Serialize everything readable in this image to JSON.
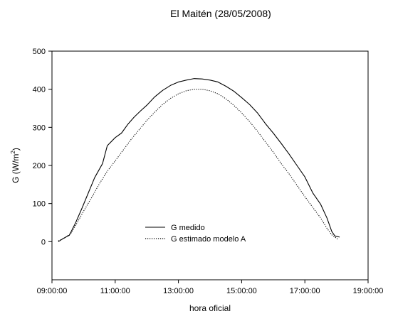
{
  "chart_data": {
    "type": "line",
    "title": "El Maitén (28/05/2008)",
    "xlabel": "hora oficial",
    "ylabel": {
      "prefix": "G (W/m",
      "superscript": "2",
      "suffix": ")"
    },
    "xlim": [
      9.0,
      19.0
    ],
    "ylim": [
      -100,
      500
    ],
    "x_ticks": [
      {
        "value": 9,
        "label": "09:00:00"
      },
      {
        "value": 11,
        "label": "11:00:00"
      },
      {
        "value": 13,
        "label": "13:00:00"
      },
      {
        "value": 15,
        "label": "15:00:00"
      },
      {
        "value": 17,
        "label": "17:00:00"
      },
      {
        "value": 19,
        "label": "19:00:00"
      }
    ],
    "y_ticks": [
      {
        "value": 0,
        "label": "0"
      },
      {
        "value": 100,
        "label": "100"
      },
      {
        "value": 200,
        "label": "200"
      },
      {
        "value": 300,
        "label": "300"
      },
      {
        "value": 400,
        "label": "400"
      },
      {
        "value": 500,
        "label": "500"
      }
    ],
    "grid": false,
    "legend": "center-bottom",
    "series": [
      {
        "name": "G medido",
        "style": "solid",
        "color": "#000000",
        "points": [
          [
            9.2,
            0
          ],
          [
            9.35,
            8
          ],
          [
            9.55,
            17
          ],
          [
            9.75,
            50
          ],
          [
            9.95,
            88
          ],
          [
            10.15,
            128
          ],
          [
            10.35,
            168
          ],
          [
            10.6,
            205
          ],
          [
            10.75,
            252
          ],
          [
            11.0,
            273
          ],
          [
            11.2,
            285
          ],
          [
            11.4,
            308
          ],
          [
            11.6,
            327
          ],
          [
            11.8,
            343
          ],
          [
            12.0,
            358
          ],
          [
            12.25,
            380
          ],
          [
            12.5,
            397
          ],
          [
            12.75,
            410
          ],
          [
            13.0,
            419
          ],
          [
            13.25,
            424
          ],
          [
            13.5,
            428
          ],
          [
            13.75,
            427
          ],
          [
            14.0,
            424
          ],
          [
            14.25,
            419
          ],
          [
            14.5,
            408
          ],
          [
            14.75,
            395
          ],
          [
            15.0,
            378
          ],
          [
            15.25,
            360
          ],
          [
            15.5,
            338
          ],
          [
            15.75,
            310
          ],
          [
            16.0,
            285
          ],
          [
            16.25,
            258
          ],
          [
            16.5,
            230
          ],
          [
            16.75,
            200
          ],
          [
            17.0,
            170
          ],
          [
            17.25,
            128
          ],
          [
            17.5,
            98
          ],
          [
            17.7,
            62
          ],
          [
            17.85,
            27
          ],
          [
            17.95,
            15
          ],
          [
            18.1,
            12
          ]
        ]
      },
      {
        "name": "G estimado modelo A",
        "style": "dotted",
        "color": "#000000",
        "points": [
          [
            9.2,
            2
          ],
          [
            9.4,
            10
          ],
          [
            9.6,
            22
          ],
          [
            9.8,
            50
          ],
          [
            10.0,
            80
          ],
          [
            10.25,
            115
          ],
          [
            10.5,
            152
          ],
          [
            10.75,
            185
          ],
          [
            11.0,
            212
          ],
          [
            11.25,
            240
          ],
          [
            11.5,
            268
          ],
          [
            11.75,
            293
          ],
          [
            12.0,
            318
          ],
          [
            12.25,
            340
          ],
          [
            12.5,
            360
          ],
          [
            12.75,
            376
          ],
          [
            13.0,
            388
          ],
          [
            13.25,
            396
          ],
          [
            13.5,
            400
          ],
          [
            13.75,
            400
          ],
          [
            14.0,
            396
          ],
          [
            14.25,
            388
          ],
          [
            14.5,
            375
          ],
          [
            14.75,
            358
          ],
          [
            15.0,
            338
          ],
          [
            15.25,
            315
          ],
          [
            15.5,
            290
          ],
          [
            15.75,
            262
          ],
          [
            16.0,
            235
          ],
          [
            16.25,
            205
          ],
          [
            16.5,
            178
          ],
          [
            16.75,
            148
          ],
          [
            17.0,
            118
          ],
          [
            17.25,
            90
          ],
          [
            17.5,
            62
          ],
          [
            17.7,
            35
          ],
          [
            17.85,
            18
          ],
          [
            18.05,
            6
          ]
        ]
      }
    ]
  }
}
